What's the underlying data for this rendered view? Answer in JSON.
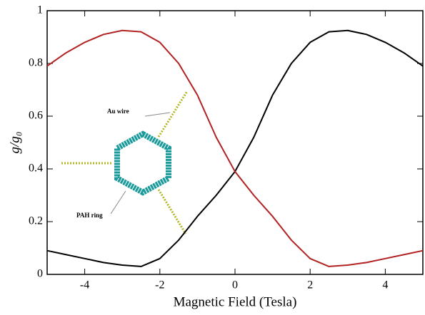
{
  "chart_data": {
    "type": "line",
    "x_label": "Magnetic Field (Tesla)",
    "y_label": "g/g₀",
    "annotations": [
      "Au wire",
      "PAH ring"
    ],
    "x": [
      -5,
      -4.5,
      -4,
      -3.5,
      -3,
      -2.5,
      -2,
      -1.5,
      -1,
      -0.5,
      0,
      0.5,
      1,
      1.5,
      2,
      2.5,
      3,
      3.5,
      4,
      4.5,
      5
    ],
    "series": [
      {
        "color": "#000000",
        "values": [
          0.09,
          0.075,
          0.06,
          0.045,
          0.035,
          0.03,
          0.06,
          0.13,
          0.22,
          0.3,
          0.39,
          0.52,
          0.68,
          0.8,
          0.88,
          0.92,
          0.925,
          0.91,
          0.88,
          0.84,
          0.79
        ]
      },
      {
        "color": "#b22222",
        "values": [
          0.79,
          0.84,
          0.88,
          0.91,
          0.925,
          0.92,
          0.88,
          0.8,
          0.68,
          0.52,
          0.39,
          0.3,
          0.22,
          0.13,
          0.06,
          0.03,
          0.035,
          0.045,
          0.06,
          0.075,
          0.09
        ]
      }
    ],
    "xlim": [
      -5,
      5
    ],
    "xticks": [
      -4,
      -2,
      0,
      2,
      4
    ],
    "ylim": [
      0,
      1
    ],
    "yticks": [
      0,
      0.2,
      0.4,
      0.6,
      0.8,
      1
    ]
  }
}
